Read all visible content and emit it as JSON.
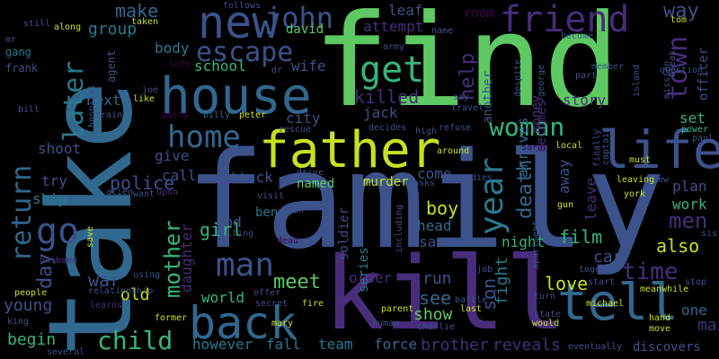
{
  "palette": {
    "background": "#000000",
    "lime": "#5ec962",
    "yellow": "#c8e020",
    "teal": "#21918c",
    "blue": "#3b528b",
    "indigo": "#472d7b",
    "purple": "#440154",
    "slate": "#31688e",
    "green": "#35b779",
    "cyan": "#2a788e"
  },
  "words": [
    "find",
    "family",
    "take",
    "kill",
    "house",
    "father",
    "life",
    "back",
    "tell",
    "new",
    "get",
    "friend",
    "john",
    "escape",
    "home",
    "woman",
    "year",
    "return",
    "go",
    "man",
    "child",
    "police",
    "town",
    "later",
    "death",
    "car",
    "mother",
    "make",
    "group",
    "way",
    "help",
    "killed",
    "story",
    "day",
    "time",
    "also",
    "film",
    "love",
    "men",
    "meet",
    "see",
    "son",
    "show",
    "boy",
    "girl",
    "war",
    "old",
    "run",
    "team",
    "force",
    "brother",
    "reveals",
    "however",
    "fall",
    "begin",
    "young",
    "school",
    "wife",
    "city",
    "jack",
    "attempt",
    "david",
    "leaf",
    "room",
    "body",
    "shoot",
    "ship",
    "try",
    "next",
    "give",
    "call",
    "attack",
    "named",
    "murder",
    "come",
    "end",
    "ben",
    "head",
    "sam",
    "night",
    "soldier",
    "series",
    "order",
    "world",
    "daughter",
    "fight",
    "arrives",
    "plan",
    "work",
    "set",
    "one",
    "max",
    "officer",
    "power",
    "leave",
    "away",
    "becomes",
    "money",
    "another",
    "gang",
    "frank",
    "agent",
    "taken",
    "left",
    "party",
    "billy",
    "peter",
    "train",
    "alien",
    "want",
    "upon",
    "save",
    "husband",
    "people",
    "king",
    "several",
    "relationship",
    "using",
    "learns",
    "former",
    "mary",
    "secret",
    "fire",
    "parent",
    "human",
    "charlie",
    "battle",
    "last",
    "job",
    "state",
    "would",
    "michael",
    "hand",
    "move",
    "eventually",
    "discovers",
    "meanwhile",
    "together",
    "start",
    "turn",
    "crew",
    "leaving",
    "york",
    "must",
    "finally",
    "captain",
    "gun",
    "local",
    "sarah",
    "around",
    "drive",
    "asks",
    "including",
    "sister",
    "apartment",
    "island",
    "mission",
    "break",
    "tom",
    "paul",
    "army",
    "name",
    "member",
    "part",
    "become",
    "despite",
    "george",
    "travel",
    "say",
    "hospital",
    "bill",
    "still",
    "along",
    "dr",
    "follows",
    "like",
    "joe",
    "mr",
    "rescue",
    "decides",
    "high",
    "refuse",
    "visit",
    "join",
    "killing",
    "dead",
    "offer",
    "stop",
    "question",
    "dies"
  ]
}
